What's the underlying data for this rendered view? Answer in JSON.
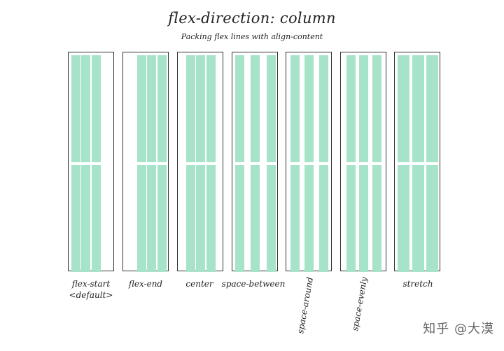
{
  "title": "flex-direction: column",
  "subtitle": "Packing flex lines with align-content",
  "item_color": "#a6e3c9",
  "border_color": "#333333",
  "containers": [
    {
      "id": "flex-start",
      "label_lines": [
        "flex-start",
        "<default>"
      ],
      "rotated": false
    },
    {
      "id": "flex-end",
      "label_lines": [
        "flex-end"
      ],
      "rotated": false
    },
    {
      "id": "center",
      "label_lines": [
        "center"
      ],
      "rotated": false
    },
    {
      "id": "space-between",
      "label_lines": [
        "space-between"
      ],
      "rotated": false
    },
    {
      "id": "space-around",
      "label_lines": [
        "space-around"
      ],
      "rotated": true
    },
    {
      "id": "space-evenly",
      "label_lines": [
        "space-evenly"
      ],
      "rotated": true
    },
    {
      "id": "stretch",
      "label_lines": [
        "stretch"
      ],
      "rotated": false
    }
  ],
  "watermark": "知乎 @大漠"
}
